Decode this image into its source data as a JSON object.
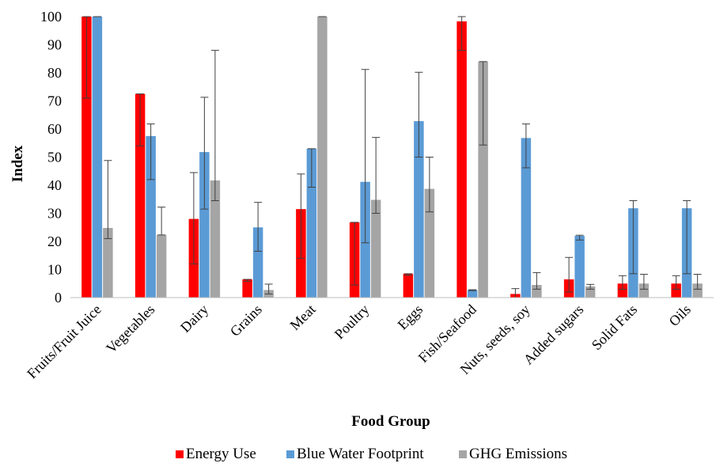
{
  "chart_data": {
    "type": "bar",
    "title": "",
    "xlabel": "Food Group",
    "ylabel": "Index",
    "ylim": [
      0,
      100
    ],
    "yticks": [
      0,
      10,
      20,
      30,
      40,
      50,
      60,
      70,
      80,
      90,
      100
    ],
    "grid": false,
    "legend_position": "bottom",
    "categories": [
      "Fruits/Fruit Juice",
      "Vegetables",
      "Dairy",
      "Grains",
      "Meat",
      "Poultry",
      "Eggs",
      "Fish/Seafood",
      "Nuts, seeds, soy",
      "Added sugars",
      "Solid Fats",
      "Oils"
    ],
    "series": [
      {
        "name": "Energy Use",
        "color": "#ff0000",
        "values": [
          100,
          72.5,
          28,
          6.5,
          31.5,
          26.8,
          8.5,
          98.3,
          1.3,
          6.5,
          5,
          5
        ],
        "error_low": [
          71,
          54,
          12,
          5.8,
          14,
          4.5,
          8,
          88,
          0,
          2,
          3,
          3
        ],
        "error_high": [
          100,
          72.5,
          44.5,
          6.5,
          44,
          26.8,
          8.5,
          100,
          3.2,
          14.3,
          7.8,
          7.8
        ]
      },
      {
        "name": "Blue Water Footprint",
        "color": "#5b9bd5",
        "values": [
          100,
          57.5,
          51.8,
          25,
          53,
          41.2,
          62.8,
          2.7,
          56.8,
          22,
          31.8,
          31.8
        ],
        "error_low": [
          100,
          42,
          31.5,
          16.5,
          39.3,
          19.5,
          50,
          2.5,
          46.2,
          20.5,
          8.5,
          8.5
        ],
        "error_high": [
          100,
          61.8,
          71.3,
          33.9,
          53,
          81.2,
          80.2,
          2.8,
          61.8,
          22.2,
          34.5,
          34.5
        ]
      },
      {
        "name": "GHG Emissions",
        "color": "#a5a5a5",
        "values": [
          24.8,
          22.3,
          41.7,
          2.7,
          100,
          34.8,
          38.7,
          84,
          4.5,
          4,
          5,
          5
        ],
        "error_low": [
          21,
          22.3,
          34.5,
          1.3,
          100,
          30,
          30.5,
          54.3,
          3,
          3,
          3,
          3
        ],
        "error_high": [
          48.8,
          32.2,
          88,
          4.8,
          100,
          57,
          50,
          84,
          8.9,
          4.7,
          8.3,
          8.3
        ]
      }
    ]
  }
}
